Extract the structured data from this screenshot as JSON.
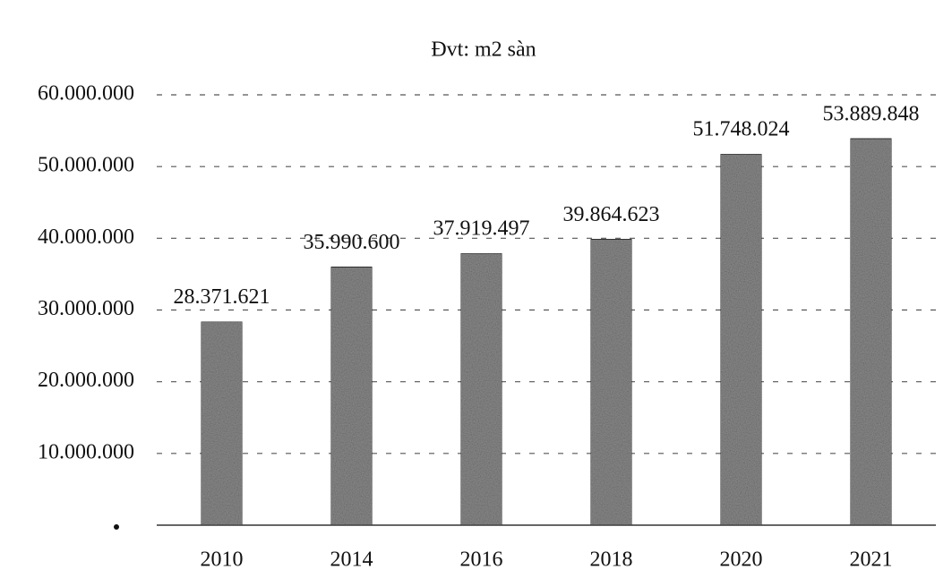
{
  "chart_data": {
    "type": "bar",
    "title": "Đvt: m2 sàn",
    "categories": [
      "2010",
      "2014",
      "2016",
      "2018",
      "2020",
      "2021"
    ],
    "values": [
      28371621,
      35990600,
      37919497,
      39864623,
      51748024,
      53889848
    ],
    "value_labels": [
      "28.371.621",
      "35.990.600",
      "37.919.497",
      "39.864.623",
      "51.748.024",
      "53.889.848"
    ],
    "color": "#8c8c8c",
    "ylim": [
      0,
      60000000
    ],
    "yticks": [
      {
        "value": 10000000,
        "label": "10.000.000"
      },
      {
        "value": 20000000,
        "label": "20.000.000"
      },
      {
        "value": 30000000,
        "label": "30.000.000"
      },
      {
        "value": 40000000,
        "label": "40.000.000"
      },
      {
        "value": 50000000,
        "label": "50.000.000"
      },
      {
        "value": 60000000,
        "label": "60.000.000"
      }
    ],
    "grid": true
  }
}
